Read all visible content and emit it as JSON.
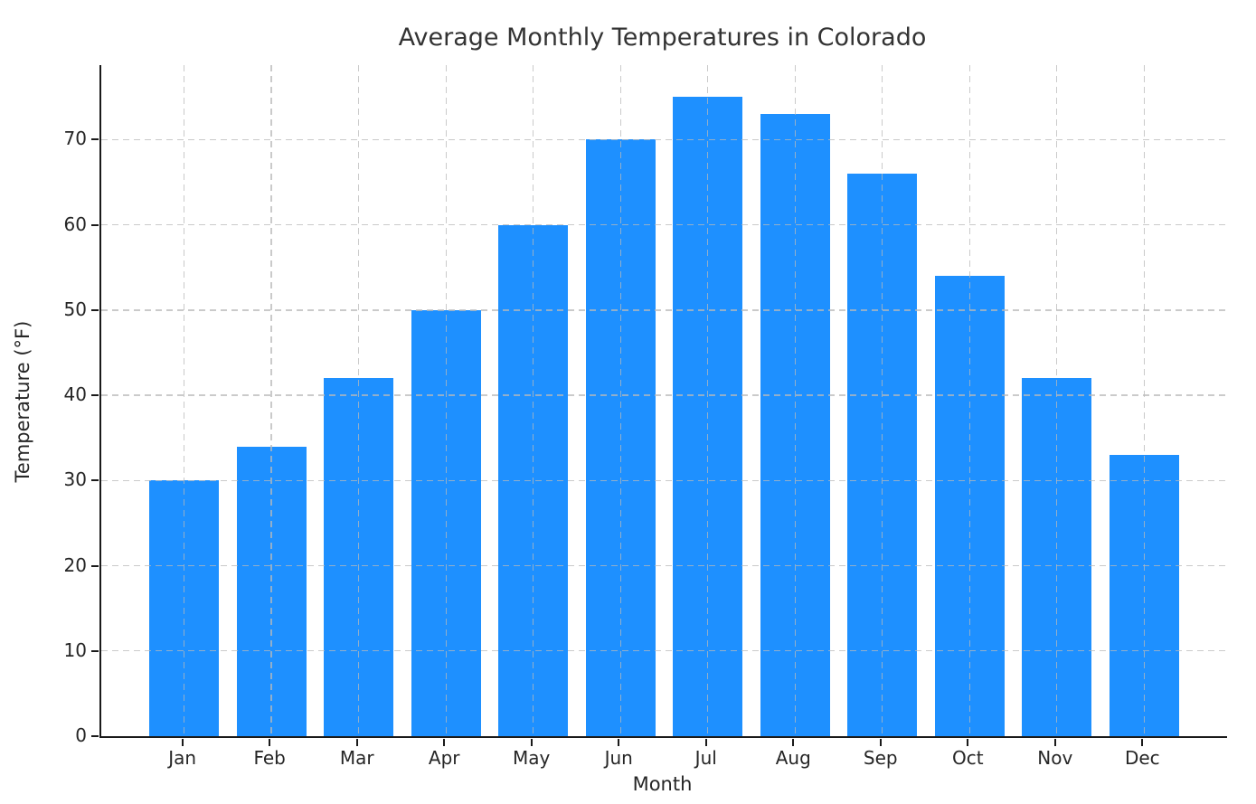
{
  "chart_data": {
    "type": "bar",
    "title": "Average Monthly Temperatures in Colorado",
    "xlabel": "Month",
    "ylabel": "Temperature (°F)",
    "categories": [
      "Jan",
      "Feb",
      "Mar",
      "Apr",
      "May",
      "Jun",
      "Jul",
      "Aug",
      "Sep",
      "Oct",
      "Nov",
      "Dec"
    ],
    "values": [
      30,
      34,
      42,
      50,
      60,
      70,
      75,
      73,
      66,
      54,
      42,
      33
    ],
    "yticks": [
      0,
      10,
      20,
      30,
      40,
      50,
      60,
      70
    ],
    "ylim": [
      0,
      78.75
    ],
    "bar_color": "#1E90FF",
    "bar_width_fraction": 0.8,
    "grid": true,
    "grid_style": "dashed",
    "grid_color": "#b9b9b9",
    "grid_above_bars": true,
    "spine_color": "#1a1a1a",
    "text_color": "#262626",
    "background_color": "#ffffff",
    "legend_position": "none"
  }
}
